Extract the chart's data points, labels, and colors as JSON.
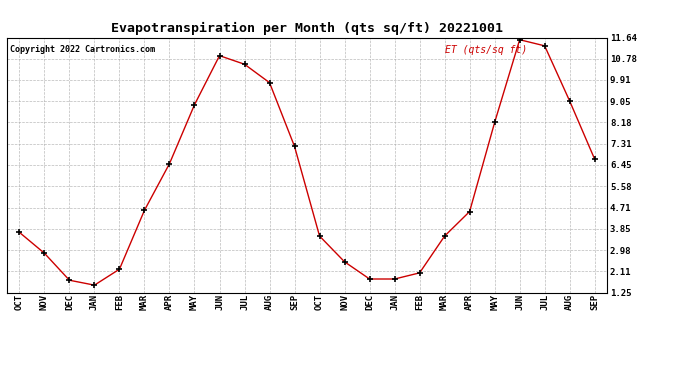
{
  "title": "Evapotranspiration per Month (qts sq/ft) 20221001",
  "copyright": "Copyright 2022 Cartronics.com",
  "legend_label": "ET (qts/sq ft)",
  "categories": [
    "OCT",
    "NOV",
    "DEC",
    "JAN",
    "FEB",
    "MAR",
    "APR",
    "MAY",
    "JUN",
    "JUL",
    "AUG",
    "SEP",
    "OCT",
    "NOV",
    "DEC",
    "JAN",
    "FEB",
    "MAR",
    "APR",
    "MAY",
    "JUN",
    "JUL",
    "AUG",
    "SEP"
  ],
  "values": [
    3.7,
    2.85,
    1.75,
    1.55,
    2.2,
    4.6,
    6.5,
    8.9,
    10.9,
    10.55,
    9.8,
    7.2,
    3.55,
    2.5,
    1.8,
    1.8,
    2.05,
    3.55,
    4.55,
    8.18,
    11.55,
    11.3,
    9.05,
    6.68
  ],
  "line_color": "#cc0000",
  "marker_color": "#000000",
  "bg_color": "#ffffff",
  "grid_color": "#aaaaaa",
  "title_color": "#000000",
  "copyright_color": "#000000",
  "legend_color": "#cc0000",
  "ylim": [
    1.25,
    11.64
  ],
  "yticks": [
    1.25,
    2.11,
    2.98,
    3.85,
    4.71,
    5.58,
    6.45,
    7.31,
    8.18,
    9.05,
    9.91,
    10.78,
    11.64
  ]
}
